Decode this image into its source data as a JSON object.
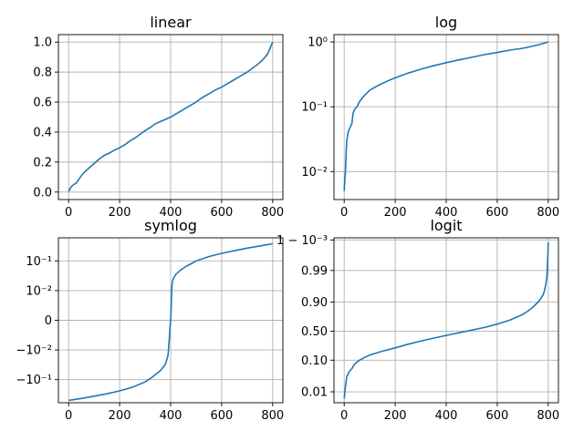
{
  "figure": {
    "background": "#ffffff",
    "line_color": "#1f77b4",
    "grid_color": "#b0b0b0"
  },
  "chart_data": [
    {
      "type": "line",
      "title": "linear",
      "yscale": "linear",
      "grid": true,
      "xlim": [
        -40,
        840
      ],
      "ylim": [
        -0.05,
        1.05
      ],
      "xticks": [
        0,
        200,
        400,
        600,
        800
      ],
      "xtick_labels": [
        "0",
        "200",
        "400",
        "600",
        "800"
      ],
      "yticks": [
        0.0,
        0.2,
        0.4,
        0.6,
        0.8,
        1.0
      ],
      "ytick_labels": [
        "0.0",
        "0.2",
        "0.4",
        "0.6",
        "0.8",
        "1.0"
      ],
      "x": [
        0,
        5,
        10,
        20,
        30,
        40,
        50,
        60,
        80,
        100,
        120,
        140,
        160,
        180,
        200,
        220,
        240,
        260,
        280,
        300,
        320,
        340,
        360,
        380,
        400,
        420,
        440,
        460,
        480,
        500,
        520,
        540,
        560,
        580,
        600,
        620,
        640,
        660,
        680,
        700,
        720,
        740,
        760,
        780,
        800
      ],
      "y": [
        0.004,
        0.02,
        0.035,
        0.05,
        0.06,
        0.085,
        0.11,
        0.13,
        0.16,
        0.19,
        0.22,
        0.245,
        0.26,
        0.28,
        0.295,
        0.315,
        0.34,
        0.36,
        0.385,
        0.41,
        0.43,
        0.455,
        0.47,
        0.485,
        0.5,
        0.52,
        0.54,
        0.56,
        0.58,
        0.6,
        0.625,
        0.645,
        0.665,
        0.685,
        0.7,
        0.72,
        0.74,
        0.76,
        0.78,
        0.8,
        0.825,
        0.85,
        0.88,
        0.92,
        1.0
      ]
    },
    {
      "type": "line",
      "title": "log",
      "yscale": "log",
      "grid": true,
      "xlim": [
        -40,
        840
      ],
      "ylim": [
        0.0037,
        1.3
      ],
      "xticks": [
        0,
        200,
        400,
        600,
        800
      ],
      "xtick_labels": [
        "0",
        "200",
        "400",
        "600",
        "800"
      ],
      "yticks": [
        0.01,
        0.1,
        1.0
      ],
      "ytick_labels": [
        "10⁻²",
        "10⁻¹",
        "10⁰"
      ],
      "x": [
        0,
        3,
        5,
        8,
        10,
        15,
        20,
        25,
        30,
        35,
        40,
        50,
        60,
        70,
        80,
        100,
        120,
        140,
        160,
        180,
        200,
        250,
        300,
        350,
        400,
        450,
        500,
        550,
        600,
        650,
        700,
        750,
        800
      ],
      "y": [
        0.005,
        0.008,
        0.01,
        0.02,
        0.03,
        0.04,
        0.045,
        0.05,
        0.055,
        0.08,
        0.09,
        0.1,
        0.12,
        0.135,
        0.15,
        0.18,
        0.2,
        0.22,
        0.24,
        0.26,
        0.28,
        0.33,
        0.38,
        0.43,
        0.48,
        0.53,
        0.58,
        0.64,
        0.69,
        0.75,
        0.8,
        0.88,
        1.0
      ]
    },
    {
      "type": "line",
      "title": "symlog",
      "yscale": "symlog",
      "linthresh": 0.01,
      "grid": true,
      "xlim": [
        -40,
        840
      ],
      "ylim": [
        -0.6,
        0.6
      ],
      "xticks": [
        0,
        200,
        400,
        600,
        800
      ],
      "xtick_labels": [
        "0",
        "200",
        "400",
        "600",
        "800"
      ],
      "yticks": [
        -0.1,
        -0.01,
        0,
        0.01,
        0.1
      ],
      "ytick_labels": [
        "−10⁻¹",
        "−10⁻²",
        "0",
        "10⁻²",
        "10⁻¹"
      ],
      "x": [
        0,
        50,
        100,
        150,
        200,
        250,
        300,
        330,
        360,
        380,
        390,
        395,
        398,
        400,
        402,
        404,
        406,
        410,
        420,
        440,
        460,
        480,
        500,
        550,
        600,
        650,
        700,
        750,
        800
      ],
      "y": [
        -0.5,
        -0.43,
        -0.36,
        -0.3,
        -0.24,
        -0.18,
        -0.12,
        -0.08,
        -0.05,
        -0.03,
        -0.015,
        -0.006,
        -0.002,
        0.0,
        0.004,
        0.01,
        0.018,
        0.025,
        0.035,
        0.05,
        0.065,
        0.08,
        0.1,
        0.14,
        0.18,
        0.22,
        0.27,
        0.32,
        0.38
      ]
    },
    {
      "type": "line",
      "title": "logit",
      "yscale": "logit",
      "grid": true,
      "xlim": [
        -40,
        840
      ],
      "ylim": [
        0.0044,
        0.99915
      ],
      "xticks": [
        0,
        200,
        400,
        600,
        800
      ],
      "xtick_labels": [
        "0",
        "200",
        "400",
        "600",
        "800"
      ],
      "yticks": [
        0.01,
        0.1,
        0.5,
        0.9,
        0.99,
        0.999
      ],
      "ytick_labels": [
        "0.01",
        "0.10",
        "0.50",
        "0.90",
        "0.99",
        "1 − 10⁻³"
      ],
      "x": [
        0,
        5,
        10,
        20,
        30,
        40,
        60,
        80,
        100,
        150,
        200,
        250,
        300,
        350,
        400,
        450,
        500,
        550,
        600,
        650,
        700,
        720,
        740,
        760,
        770,
        780,
        785,
        790,
        795,
        798,
        800
      ],
      "y": [
        0.006,
        0.015,
        0.03,
        0.045,
        0.055,
        0.075,
        0.1,
        0.12,
        0.14,
        0.18,
        0.22,
        0.27,
        0.32,
        0.37,
        0.42,
        0.47,
        0.52,
        0.57,
        0.63,
        0.7,
        0.78,
        0.82,
        0.86,
        0.9,
        0.92,
        0.94,
        0.955,
        0.97,
        0.985,
        0.996,
        0.9988
      ]
    }
  ]
}
